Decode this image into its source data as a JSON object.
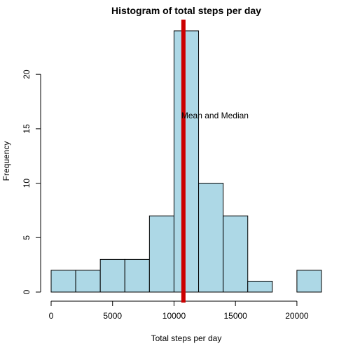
{
  "chart_data": {
    "type": "bar",
    "title": "Histogram of total steps per day",
    "xlabel": "Total steps per day",
    "ylabel": "Frequency",
    "bins": [
      {
        "from": 0,
        "to": 2000,
        "count": 2
      },
      {
        "from": 2000,
        "to": 4000,
        "count": 2
      },
      {
        "from": 4000,
        "to": 6000,
        "count": 3
      },
      {
        "from": 6000,
        "to": 8000,
        "count": 3
      },
      {
        "from": 8000,
        "to": 10000,
        "count": 7
      },
      {
        "from": 10000,
        "to": 12000,
        "count": 24
      },
      {
        "from": 12000,
        "to": 14000,
        "count": 10
      },
      {
        "from": 14000,
        "to": 16000,
        "count": 7
      },
      {
        "from": 16000,
        "to": 18000,
        "count": 1
      },
      {
        "from": 18000,
        "to": 20000,
        "count": 0
      },
      {
        "from": 20000,
        "to": 22000,
        "count": 2
      }
    ],
    "xlim": [
      0,
      22000
    ],
    "ylim": [
      0,
      24
    ],
    "xticks": [
      0,
      5000,
      10000,
      15000,
      20000
    ],
    "yticks": [
      0,
      5,
      10,
      15,
      20
    ],
    "mean_line": {
      "x": 10766,
      "label": "Mean and Median",
      "label_y": 16.2
    },
    "colors": {
      "bar_fill": "#add8e6",
      "bar_stroke": "#000000",
      "mean_line": "#cc0000"
    },
    "grid": false,
    "legend": "none"
  }
}
